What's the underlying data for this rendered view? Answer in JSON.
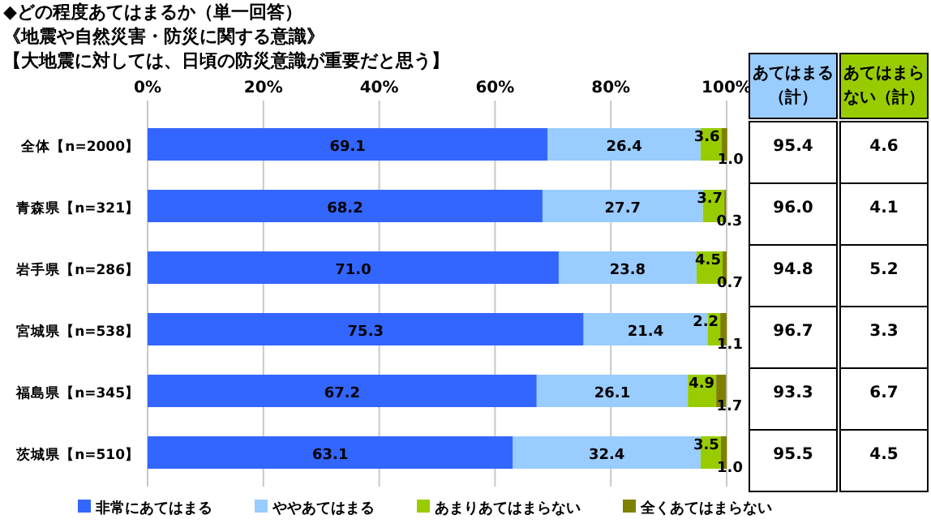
{
  "chart_data": [
    {
      "type": "bar",
      "orientation": "horizontal",
      "stacked": true,
      "title": "◆どの程度あてはまるか（単一回答）",
      "subtitle": "《地震や自然災害・防災に関する意識》",
      "annotations": [
        "【大地震に対しては、日頃の防災意識が重要だと思う】"
      ],
      "categories": [
        "全体【n=2000】",
        "青森県【n=321】",
        "岩手県【n=286】",
        "宮城県【n=538】",
        "福島県【n=345】",
        "茨城県【n=510】"
      ],
      "series": [
        {
          "name": "非常にあてはまる",
          "color": "#3366ff",
          "values": [
            69.1,
            68.2,
            71.0,
            75.3,
            67.2,
            63.1
          ],
          "value_labels": [
            "69.1",
            "68.2",
            "71.0",
            "75.3",
            "67.2",
            "63.1"
          ]
        },
        {
          "name": "ややあてはまる",
          "color": "#99ccff",
          "values": [
            26.4,
            27.7,
            23.8,
            21.4,
            26.1,
            32.4
          ],
          "value_labels": [
            "26.4",
            "27.7",
            "23.8",
            "21.4",
            "26.1",
            "32.4"
          ]
        },
        {
          "name": "あまりあてはまらない",
          "color": "#99cc00",
          "values": [
            3.6,
            3.7,
            4.5,
            2.2,
            4.9,
            3.5
          ],
          "value_labels": [
            "3.6",
            "3.7",
            "4.5",
            "2.2",
            "4.9",
            "3.5"
          ]
        },
        {
          "name": "全くあてはまらない",
          "color": "#808000",
          "values": [
            1.0,
            0.3,
            0.7,
            1.1,
            1.7,
            1.0
          ],
          "value_labels": [
            "1.0",
            "0.3",
            "0.7",
            "1.1",
            "1.7",
            "1.0"
          ]
        }
      ],
      "xlim": [
        0,
        100
      ],
      "xticks": [
        {
          "value": 0,
          "label": "0%"
        },
        {
          "value": 20,
          "label": "20%"
        },
        {
          "value": 40,
          "label": "40%"
        },
        {
          "value": 60,
          "label": "60%"
        },
        {
          "value": 80,
          "label": "80%"
        },
        {
          "value": 100,
          "label": "100%"
        }
      ],
      "grid": "x",
      "legend": "bottom"
    },
    {
      "type": "other",
      "categories": [
        "あてはまる（計）",
        "あてはまらない（計）"
      ],
      "colors": [
        "#99ccff",
        "#99cc00"
      ],
      "cell_labels": [
        [
          "95.4",
          "4.6"
        ],
        [
          "96.0",
          "4.1"
        ],
        [
          "94.8",
          "5.2"
        ],
        [
          "96.7",
          "3.3"
        ],
        [
          "93.3",
          "6.7"
        ],
        [
          "95.5",
          "4.5"
        ]
      ]
    }
  ]
}
